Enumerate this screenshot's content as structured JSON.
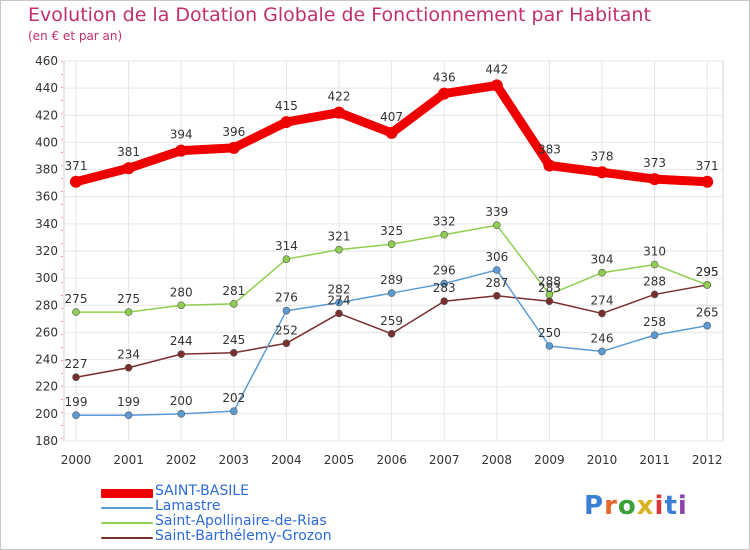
{
  "title": "Evolution de la Dotation Globale de Fonctionnement par Habitant",
  "subtitle": "(en € et par an)",
  "logo": {
    "text": "Proxiti",
    "letter_colors": [
      "#3a7fd5",
      "#e8662b",
      "#3aa13a",
      "#d9b21f",
      "#d9373a",
      "#3a7fd5",
      "#8e44ad"
    ]
  },
  "chart_data": {
    "type": "line",
    "x": [
      "2000",
      "2001",
      "2002",
      "2003",
      "2004",
      "2005",
      "2006",
      "2007",
      "2008",
      "2009",
      "2010",
      "2011",
      "2012"
    ],
    "ylim": [
      180,
      460
    ],
    "yticks": [
      180,
      200,
      220,
      240,
      260,
      280,
      300,
      320,
      340,
      360,
      380,
      400,
      420,
      440,
      460
    ],
    "grid": true,
    "legend_position": "bottom-left",
    "series": [
      {
        "name": "SAINT-BASILE",
        "color": "#ee0000",
        "values": [
          371,
          381,
          394,
          396,
          415,
          422,
          407,
          436,
          442,
          383,
          378,
          373,
          371
        ]
      },
      {
        "name": "Lamastre",
        "color": "#5b9bd5",
        "values": [
          199,
          199,
          200,
          202,
          276,
          282,
          289,
          296,
          306,
          250,
          246,
          258,
          265
        ]
      },
      {
        "name": "Saint-Apollinaire-de-Rias",
        "color": "#8fce4f",
        "values": [
          275,
          275,
          280,
          281,
          314,
          321,
          325,
          332,
          339,
          288,
          304,
          310,
          295
        ]
      },
      {
        "name": "Saint-Barthélemy-Grozon",
        "color": "#7a2e2e",
        "values": [
          227,
          234,
          244,
          245,
          252,
          274,
          259,
          283,
          287,
          283,
          274,
          288,
          295
        ]
      }
    ]
  }
}
